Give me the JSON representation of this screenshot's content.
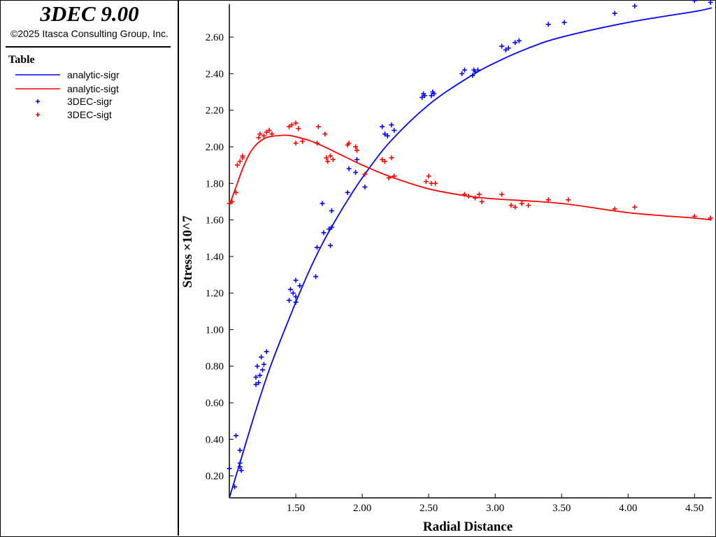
{
  "app": {
    "title": "3DEC 9.00",
    "copyright": "©2025 Itasca Consulting Group, Inc."
  },
  "legend": {
    "title": "Table",
    "items": [
      {
        "label": "analytic-sigr",
        "kind": "line",
        "color": "#0000ff"
      },
      {
        "label": "analytic-sigt",
        "kind": "line",
        "color": "#ff0000"
      },
      {
        "label": "3DEC-sigr",
        "kind": "cross",
        "color": "#0000ff"
      },
      {
        "label": "3DEC-sigt",
        "kind": "cross",
        "color": "#ff0000"
      }
    ]
  },
  "chart_data": {
    "type": "line",
    "title": "",
    "xlabel": "Radial Distance",
    "ylabel": "Stress ×10^7",
    "xlim": [
      1.0,
      4.63
    ],
    "ylim": [
      0.08,
      2.78
    ],
    "grid": false,
    "x_ticks": [
      1.5,
      2.0,
      2.5,
      3.0,
      3.5,
      4.0,
      4.5
    ],
    "x_tick_labels": [
      "1.50",
      "2.00",
      "2.50",
      "3.00",
      "3.50",
      "4.00",
      "4.50"
    ],
    "y_ticks": [
      0.2,
      0.4,
      0.6,
      0.8,
      1.0,
      1.2,
      1.4,
      1.6,
      1.8,
      2.0,
      2.2,
      2.4,
      2.6
    ],
    "y_tick_labels": [
      "0.20",
      "0.40",
      "0.60",
      "0.80",
      "1.00",
      "1.20",
      "1.40",
      "1.60",
      "1.80",
      "2.00",
      "2.20",
      "2.40",
      "2.60"
    ],
    "series": [
      {
        "name": "analytic-sigr",
        "style": "line",
        "color": "#0000ff",
        "x": [
          1.0,
          1.1,
          1.2,
          1.3,
          1.4,
          1.5,
          1.6,
          1.7,
          1.8,
          1.9,
          2.0,
          2.2,
          2.5,
          2.8,
          3.0,
          3.25,
          3.5,
          4.0,
          4.5,
          4.63
        ],
        "y": [
          0.08,
          0.32,
          0.56,
          0.78,
          0.97,
          1.15,
          1.32,
          1.47,
          1.6,
          1.72,
          1.83,
          2.02,
          2.23,
          2.38,
          2.46,
          2.54,
          2.6,
          2.68,
          2.74,
          2.76
        ]
      },
      {
        "name": "analytic-sigt",
        "style": "line",
        "color": "#ff0000",
        "x": [
          1.0,
          1.05,
          1.1,
          1.15,
          1.2,
          1.25,
          1.3,
          1.4,
          1.45,
          1.5,
          1.6,
          1.7,
          1.8,
          1.9,
          2.0,
          2.2,
          2.5,
          2.8,
          3.0,
          3.5,
          4.0,
          4.5,
          4.63
        ],
        "y": [
          1.68,
          1.78,
          1.88,
          1.96,
          2.01,
          2.04,
          2.055,
          2.063,
          2.062,
          2.055,
          2.035,
          2.005,
          1.97,
          1.935,
          1.9,
          1.84,
          1.77,
          1.73,
          1.715,
          1.69,
          1.64,
          1.61,
          1.6
        ]
      },
      {
        "name": "3DEC-sigr",
        "style": "marker",
        "color": "#0000ff",
        "x": [
          1.0,
          1.04,
          1.05,
          1.08,
          1.08,
          1.08,
          1.09,
          1.2,
          1.2,
          1.21,
          1.22,
          1.23,
          1.24,
          1.25,
          1.26,
          1.28,
          1.45,
          1.46,
          1.48,
          1.5,
          1.5,
          1.5,
          1.53,
          1.65,
          1.66,
          1.7,
          1.71,
          1.75,
          1.76,
          1.77,
          1.77,
          1.89,
          1.9,
          1.95,
          1.96,
          2.02,
          2.15,
          2.17,
          2.19,
          2.22,
          2.24,
          2.45,
          2.46,
          2.47,
          2.52,
          2.53,
          2.54,
          2.75,
          2.77,
          2.83,
          2.84,
          2.85,
          2.87,
          3.05,
          3.08,
          3.1,
          3.15,
          3.18,
          3.4,
          3.52,
          3.9,
          4.05,
          4.5,
          4.62
        ],
        "y": [
          0.24,
          0.14,
          0.42,
          0.25,
          0.27,
          0.34,
          0.23,
          0.7,
          0.74,
          0.8,
          0.71,
          0.75,
          0.85,
          0.78,
          0.81,
          0.88,
          1.16,
          1.22,
          1.2,
          1.15,
          1.18,
          1.27,
          1.24,
          1.29,
          1.45,
          1.69,
          1.53,
          1.55,
          1.46,
          1.56,
          1.65,
          1.75,
          1.88,
          1.86,
          1.93,
          1.78,
          2.11,
          2.07,
          2.06,
          2.12,
          2.09,
          2.27,
          2.29,
          2.28,
          2.28,
          2.3,
          2.29,
          2.4,
          2.42,
          2.39,
          2.42,
          2.41,
          2.42,
          2.55,
          2.53,
          2.54,
          2.57,
          2.58,
          2.67,
          2.68,
          2.73,
          2.77,
          2.8,
          2.79
        ]
      },
      {
        "name": "3DEC-sigt",
        "style": "marker",
        "color": "#ff0000",
        "x": [
          1.0,
          1.02,
          1.05,
          1.06,
          1.08,
          1.1,
          1.1,
          1.22,
          1.23,
          1.26,
          1.28,
          1.3,
          1.32,
          1.45,
          1.47,
          1.5,
          1.5,
          1.52,
          1.55,
          1.66,
          1.67,
          1.72,
          1.73,
          1.74,
          1.76,
          1.78,
          1.89,
          1.9,
          1.95,
          1.96,
          2.02,
          2.15,
          2.17,
          2.2,
          2.22,
          2.24,
          2.48,
          2.5,
          2.52,
          2.55,
          2.77,
          2.8,
          2.85,
          2.88,
          2.9,
          3.05,
          3.12,
          3.15,
          3.2,
          3.25,
          3.4,
          3.55,
          3.9,
          4.05,
          4.5,
          4.62
        ],
        "y": [
          1.69,
          1.7,
          1.75,
          1.9,
          1.92,
          1.94,
          1.95,
          2.05,
          2.07,
          2.06,
          2.08,
          2.09,
          2.07,
          2.11,
          2.12,
          2.13,
          2.02,
          2.1,
          2.03,
          2.02,
          2.11,
          2.07,
          1.94,
          1.92,
          1.95,
          1.93,
          2.01,
          2.02,
          2.0,
          1.98,
          1.85,
          1.93,
          1.92,
          1.83,
          1.94,
          1.84,
          1.81,
          1.84,
          1.8,
          1.8,
          1.74,
          1.73,
          1.72,
          1.74,
          1.7,
          1.74,
          1.68,
          1.67,
          1.69,
          1.68,
          1.71,
          1.71,
          1.66,
          1.67,
          1.62,
          1.61
        ]
      }
    ]
  }
}
